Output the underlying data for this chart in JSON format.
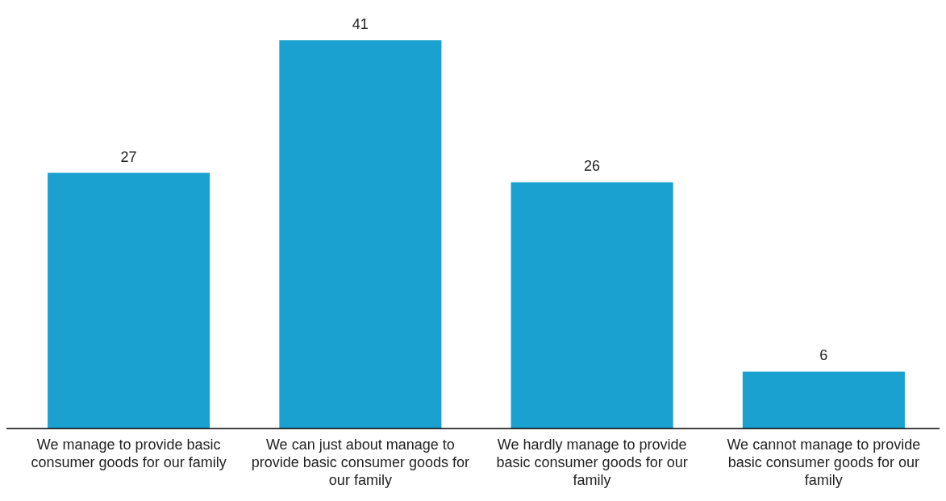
{
  "chart_data": {
    "type": "bar",
    "categories": [
      "We manage to provide basic consumer goods for our family",
      "We can just about manage to provide basic consumer goods for our family",
      "We hardly manage to provide basic consumer goods for our family",
      "We cannot manage to provide basic consumer goods for our family"
    ],
    "values": [
      27,
      41,
      26,
      6
    ],
    "color": "#1aa1cf",
    "data_labels": true
  }
}
